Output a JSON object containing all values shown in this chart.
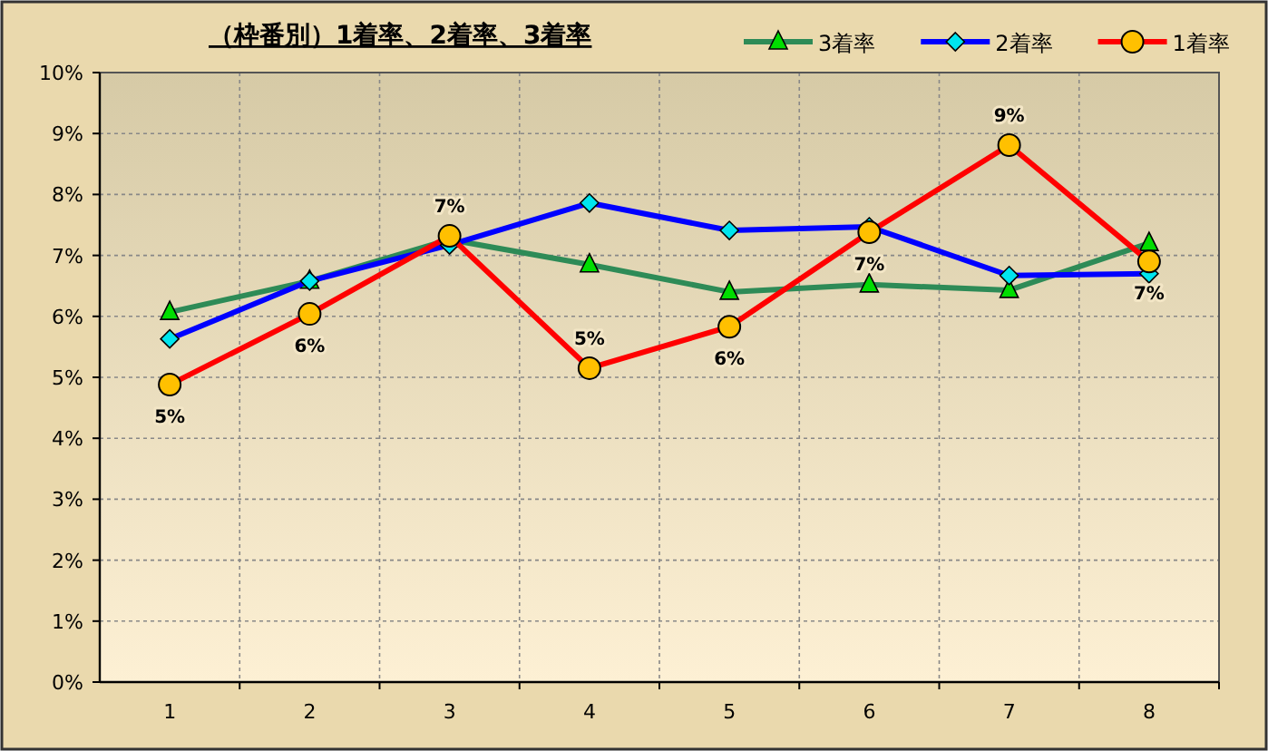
{
  "chart_data": {
    "type": "line",
    "title": "（枠番別）1着率、2着率、3着率",
    "categories": [
      "1",
      "2",
      "3",
      "4",
      "5",
      "6",
      "7",
      "8"
    ],
    "series": [
      {
        "name": "3着率",
        "color": "#2e8b57",
        "marker": "triangle",
        "colors": [
          "#00dd00",
          "#00dd00",
          "#00dd00",
          "#00dd00",
          "#00dd00",
          "#00dd00",
          "#00dd00",
          "#00dd00"
        ],
        "values": [
          6.07,
          6.58,
          7.26,
          6.85,
          6.4,
          6.52,
          6.43,
          7.2
        ]
      },
      {
        "name": "2着率",
        "color": "#0000ff",
        "marker": "diamond",
        "colors": [
          "#00e5ee",
          "#00e5ee",
          "#00e5ee",
          "#00e5ee",
          "#00e5ee",
          "#00e5ee",
          "#00e5ee",
          "#00e5ee"
        ],
        "values": [
          5.63,
          6.58,
          7.17,
          7.86,
          7.41,
          7.47,
          6.67,
          6.7
        ]
      },
      {
        "name": "1着率",
        "color": "#ff0000",
        "marker": "circle",
        "colors": [
          "#ffc000",
          "#ffc000",
          "#ffc000",
          "#ffc000",
          "#ffc000",
          "#ffc000",
          "#ffc000",
          "#ffc000"
        ],
        "values": [
          4.88,
          6.04,
          7.32,
          5.15,
          5.83,
          7.38,
          8.81,
          6.9
        ],
        "value_labels": [
          "5%",
          "6%",
          "7%",
          "5%",
          "6%",
          "7%",
          "9%",
          "7%"
        ]
      }
    ],
    "ylim": [
      0,
      10
    ],
    "yticks": [
      {
        "value": 0,
        "label": "0%"
      },
      {
        "value": 1,
        "label": "1%"
      },
      {
        "value": 2,
        "label": "2%"
      },
      {
        "value": 3,
        "label": "3%"
      },
      {
        "value": 4,
        "label": "4%"
      },
      {
        "value": 5,
        "label": "5%"
      },
      {
        "value": 6,
        "label": "6%"
      },
      {
        "value": 7,
        "label": "7%"
      },
      {
        "value": 8,
        "label": "8%"
      },
      {
        "value": 9,
        "label": "9%"
      },
      {
        "value": 10,
        "label": "10%"
      }
    ],
    "grid": true,
    "legend": "top right",
    "line_style": "solid"
  }
}
